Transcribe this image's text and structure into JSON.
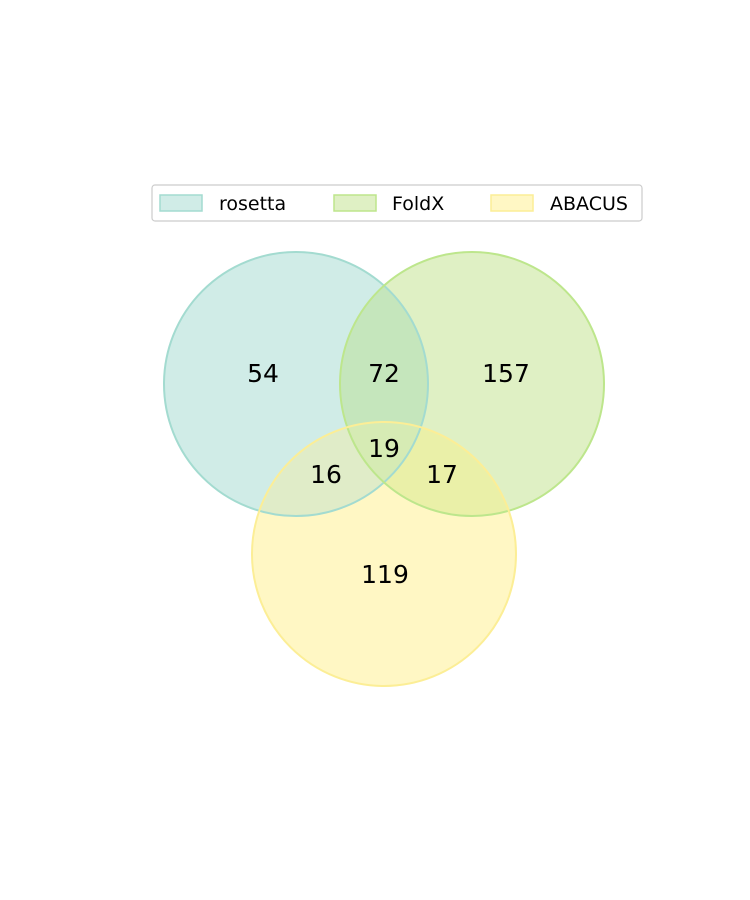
{
  "sets": [
    {
      "name": "rosetta",
      "fill": "#d0ece7",
      "stroke": "#a3dbd0"
    },
    {
      "name": "FoldX",
      "fill": "#dff0c4",
      "stroke": "#bde68c"
    },
    {
      "name": "ABACUS",
      "fill": "#fff7c4",
      "stroke": "#fcee96"
    }
  ],
  "regions": {
    "rosetta_only": "54",
    "foldx_only": "157",
    "abacus_only": "119",
    "rosetta_foldx": "72",
    "rosetta_abacus": "16",
    "foldx_abacus": "17",
    "all_three": "19"
  },
  "colors": {
    "rosetta_foldx": "#c5e6bc",
    "rosetta_abacus": "#e0ecc8",
    "foldx_abacus": "#eaf0a8",
    "all_three": "#d6ebb4"
  }
}
